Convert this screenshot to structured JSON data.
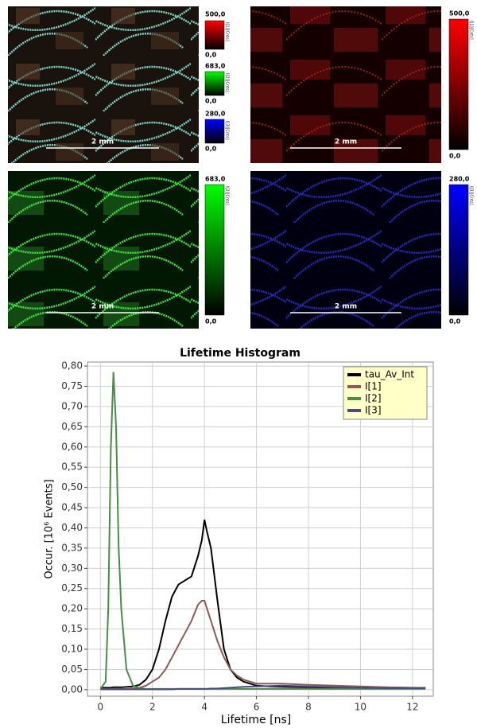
{
  "panels": [
    {
      "colorbars": [
        {
          "max": "500,0",
          "min": "0,0",
          "label": "I[1][Cnts]"
        },
        {
          "max": "683,0",
          "min": "0,0",
          "label": "I[2][Cnts]"
        },
        {
          "max": "280,0",
          "min": "0,0",
          "label": "I[3][Cnts]"
        }
      ],
      "scale_bar": "2 mm"
    },
    {
      "colorbars": [
        {
          "max": "500,0",
          "min": "0,0",
          "label": "I[1][Cnts]"
        }
      ],
      "scale_bar": "2 mm"
    },
    {
      "colorbars": [
        {
          "max": "683,0",
          "min": "0,0",
          "label": "I[2][Cnts]"
        }
      ],
      "scale_bar": "2 mm"
    },
    {
      "colorbars": [
        {
          "max": "280,0",
          "min": "0,0",
          "label": "I[3][Cnts]"
        }
      ],
      "scale_bar": "2 mm"
    }
  ],
  "chart_data": {
    "type": "line",
    "title": "Lifetime Histogram",
    "xlabel": "Lifetime [ns]",
    "ylabel": "Occur. [10⁶ Events]",
    "x": [
      0,
      0.2,
      0.3,
      0.4,
      0.5,
      0.6,
      0.7,
      0.8,
      1.0,
      1.25,
      1.5,
      1.75,
      2,
      2.25,
      2.5,
      2.75,
      3,
      3.25,
      3.5,
      3.75,
      3.9,
      4,
      4.1,
      4.25,
      4.5,
      4.75,
      5,
      5.25,
      5.5,
      6,
      6.5,
      7,
      8,
      9,
      10,
      11,
      12,
      12.5
    ],
    "series": [
      {
        "name": "tau_Av_Int",
        "color": "#000000",
        "values": [
          0.005,
          0.005,
          0.005,
          0.005,
          0.006,
          0.006,
          0.006,
          0.006,
          0.007,
          0.008,
          0.012,
          0.025,
          0.05,
          0.1,
          0.17,
          0.23,
          0.26,
          0.27,
          0.28,
          0.33,
          0.37,
          0.42,
          0.39,
          0.35,
          0.22,
          0.1,
          0.05,
          0.03,
          0.02,
          0.01,
          0.008,
          0.007,
          0.006,
          0.005,
          0.005,
          0.004,
          0.004,
          0.004
        ]
      },
      {
        "name": "I[1]",
        "color": "#8b5a55",
        "values": [
          0.002,
          0.002,
          0.002,
          0.002,
          0.002,
          0.002,
          0.002,
          0.002,
          0.002,
          0.003,
          0.005,
          0.01,
          0.02,
          0.03,
          0.05,
          0.08,
          0.11,
          0.14,
          0.17,
          0.21,
          0.22,
          0.22,
          0.2,
          0.17,
          0.12,
          0.08,
          0.05,
          0.035,
          0.025,
          0.015,
          0.015,
          0.015,
          0.012,
          0.01,
          0.008,
          0.006,
          0.005,
          0.005
        ]
      },
      {
        "name": "I[2]",
        "color": "#4a8a4a",
        "values": [
          0.002,
          0.02,
          0.2,
          0.6,
          0.785,
          0.65,
          0.35,
          0.2,
          0.05,
          0.01,
          0.004,
          0.002,
          0.002,
          0.002,
          0.002,
          0.002,
          0.002,
          0.002,
          0.002,
          0.002,
          0.002,
          0.002,
          0.002,
          0.002,
          0.002,
          0.002,
          0.002,
          0.002,
          0.002,
          0.002,
          0.002,
          0.002,
          0.002,
          0.002,
          0.002,
          0.002,
          0.002,
          0.002
        ]
      },
      {
        "name": "I[3]",
        "color": "#4a4a80",
        "values": [
          0.001,
          0.001,
          0.001,
          0.001,
          0.001,
          0.001,
          0.001,
          0.001,
          0.001,
          0.001,
          0.001,
          0.001,
          0.001,
          0.001,
          0.001,
          0.001,
          0.002,
          0.002,
          0.002,
          0.002,
          0.002,
          0.002,
          0.002,
          0.003,
          0.003,
          0.004,
          0.005,
          0.006,
          0.007,
          0.008,
          0.009,
          0.01,
          0.008,
          0.006,
          0.005,
          0.004,
          0.004,
          0.004
        ]
      }
    ],
    "xlim": [
      -0.5,
      12.8
    ],
    "ylim": [
      -0.016,
      0.81
    ],
    "xticks": [
      0,
      2,
      4,
      6,
      8,
      10,
      12
    ],
    "yticks": [
      {
        "value": 0,
        "label": "0,00"
      },
      {
        "value": 0.05,
        "label": "0,05"
      },
      {
        "value": 0.1,
        "label": "0,10"
      },
      {
        "value": 0.15,
        "label": "0,15"
      },
      {
        "value": 0.2,
        "label": "0,20"
      },
      {
        "value": 0.25,
        "label": "0,25"
      },
      {
        "value": 0.3,
        "label": "0,30"
      },
      {
        "value": 0.35,
        "label": "0,35"
      },
      {
        "value": 0.4,
        "label": "0,40"
      },
      {
        "value": 0.45,
        "label": "0,45"
      },
      {
        "value": 0.5,
        "label": "0,50"
      },
      {
        "value": 0.55,
        "label": "0,55"
      },
      {
        "value": 0.6,
        "label": "0,60"
      },
      {
        "value": 0.65,
        "label": "0,65"
      },
      {
        "value": 0.7,
        "label": "0,70"
      },
      {
        "value": 0.75,
        "label": "0,75"
      },
      {
        "value": 0.8,
        "label": "0,80"
      }
    ],
    "grid": true,
    "legend": "upper right"
  }
}
